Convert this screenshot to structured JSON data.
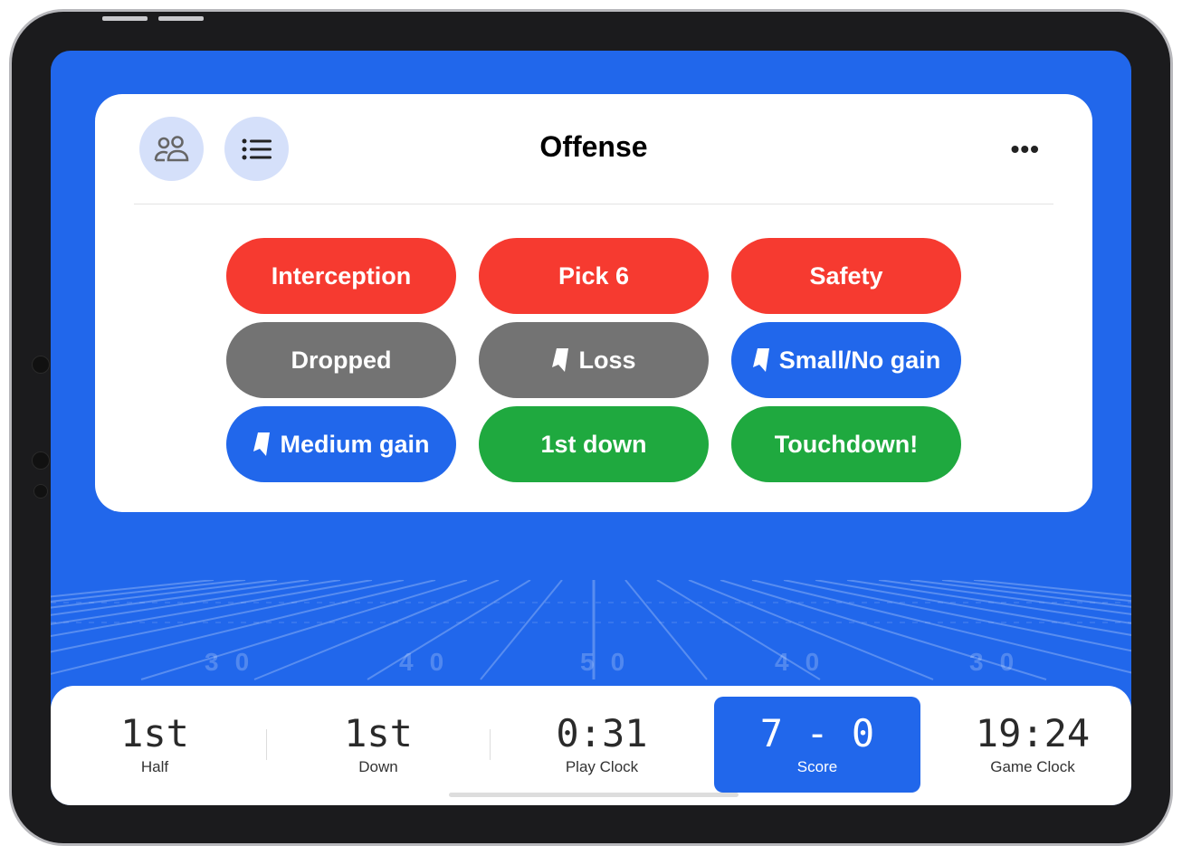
{
  "header": {
    "title": "Offense",
    "people_icon": "people-icon",
    "list_icon": "list-icon",
    "more_icon": "ellipsis-icon",
    "more_label": "•••"
  },
  "buttons": [
    {
      "label": "Interception",
      "color": "#f63a30",
      "icon": null
    },
    {
      "label": "Pick 6",
      "color": "#f63a30",
      "icon": null
    },
    {
      "label": "Safety",
      "color": "#f63a30",
      "icon": null
    },
    {
      "label": "Dropped",
      "color": "#737373",
      "icon": null
    },
    {
      "label": "Loss",
      "color": "#737373",
      "icon": "tag-icon"
    },
    {
      "label": "Small/No gain",
      "color": "#2167eb",
      "icon": "tag-icon"
    },
    {
      "label": "Medium gain",
      "color": "#2167eb",
      "icon": "tag-icon"
    },
    {
      "label": "1st down",
      "color": "#1fa93f",
      "icon": null
    },
    {
      "label": "Touchdown!",
      "color": "#1fa93f",
      "icon": null
    }
  ],
  "field": {
    "yard_numbers": [
      "30",
      "40",
      "50",
      "40",
      "30"
    ]
  },
  "scoreboard": {
    "half": {
      "value": "1st",
      "label": "Half"
    },
    "down": {
      "value": "1st",
      "label": "Down"
    },
    "play_clock": {
      "value": "0:31",
      "label": "Play Clock"
    },
    "score": {
      "value": "7 - 0",
      "label": "Score"
    },
    "game_clock": {
      "value": "19:24",
      "label": "Game Clock"
    }
  },
  "colors": {
    "accent": "#2167eb",
    "red": "#f63a30",
    "gray": "#737373",
    "green": "#1fa93f"
  }
}
